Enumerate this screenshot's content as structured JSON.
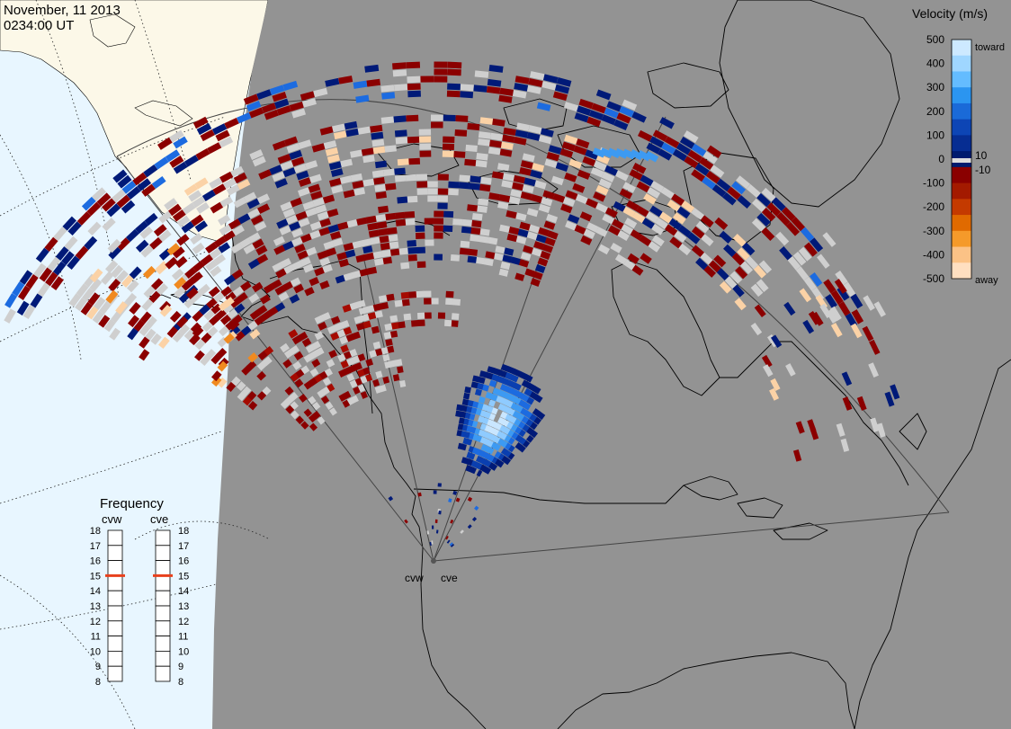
{
  "header": {
    "date": "November, 11 2013",
    "time": "0234:00 UT"
  },
  "colors": {
    "ocean": "#e8f6ff",
    "land_sunlit": "#fcf8e8",
    "night": "#939393",
    "ground_scatter": "#cfcfcf",
    "coastline": "#000000"
  },
  "radars": [
    {
      "id": "cvw",
      "label": "cvw"
    },
    {
      "id": "cve",
      "label": "cve"
    }
  ],
  "frequency_panel": {
    "title": "Frequency",
    "columns": [
      {
        "label": "cvw",
        "value": 15
      },
      {
        "label": "cve",
        "value": 15
      }
    ],
    "ticks": [
      "18",
      "17",
      "16",
      "15",
      "14",
      "13",
      "12",
      "11",
      "10",
      "9",
      "8"
    ],
    "marker_color": "#e8401c"
  },
  "velocity_legend": {
    "title": "Velocity (m/s)",
    "ticks": [
      "500",
      "400",
      "300",
      "200",
      "100",
      "0",
      "-100",
      "-200",
      "-300",
      "-400",
      "-500"
    ],
    "inner_ticks": [
      "10",
      "-10"
    ],
    "toward_label": "toward",
    "away_label": "away",
    "palette_top_to_bottom": [
      "#cde9ff",
      "#9fd6ff",
      "#64bcff",
      "#2b95f0",
      "#1a6ad8",
      "#0d45b5",
      "#062d92",
      "#001b6e",
      "#8a0000",
      "#a31a00",
      "#c43a00",
      "#e06a00",
      "#f59a2a",
      "#fbc286",
      "#ffdfc0"
    ]
  }
}
